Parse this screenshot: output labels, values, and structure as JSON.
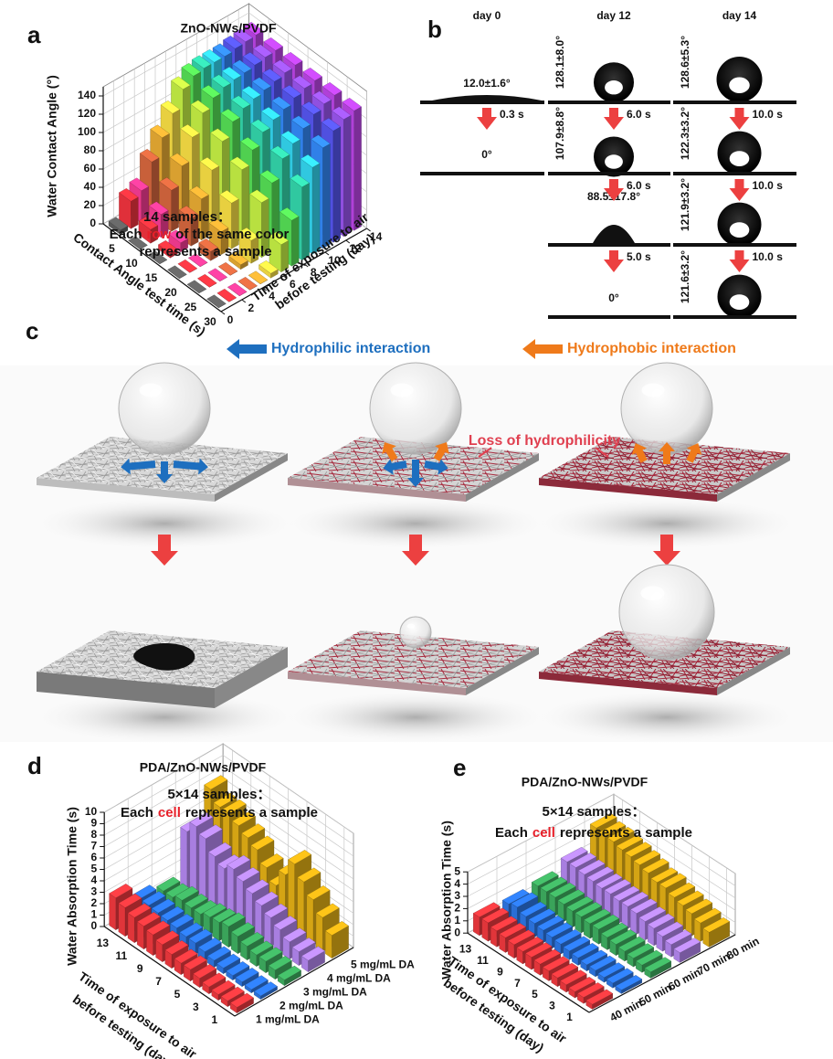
{
  "chart_data": [
    {
      "type": "bar3d",
      "label": "a",
      "title": "ZnO-NWs/PVDF",
      "ylabel": "Water Contact Angle (°)",
      "xlabel": [
        "Contact Angle test time (s)"
      ],
      "zlabel": [
        "Time of exposure to air",
        "before testing (day)"
      ],
      "annotation": {
        "line1": "14 samples：",
        "line2": [
          "Each",
          "row",
          "of the same color"
        ],
        "line3": "represents a sample"
      },
      "x": [
        5,
        10,
        15,
        20,
        25,
        30
      ],
      "xlim": [
        0,
        30
      ],
      "xticks": [
        5,
        10,
        15,
        20,
        25,
        30
      ],
      "ylim": [
        0,
        150
      ],
      "yticks": [
        0,
        20,
        40,
        60,
        80,
        100,
        120,
        140
      ],
      "zlim": [
        0,
        14
      ],
      "zticks": [
        0,
        2,
        4,
        6,
        8,
        10,
        12,
        14
      ],
      "series": [
        {
          "color": "#5a5a5a",
          "values": [
            5,
            0,
            0,
            0,
            0,
            0
          ]
        },
        {
          "color": "#e0303a",
          "values": [
            30,
            15,
            5,
            0,
            0,
            0
          ]
        },
        {
          "color": "#e8388a",
          "values": [
            35,
            25,
            10,
            0,
            0,
            0
          ]
        },
        {
          "color": "#c8603a",
          "values": [
            60,
            45,
            30,
            10,
            0,
            0
          ]
        },
        {
          "color": "#d9a030",
          "values": [
            80,
            65,
            45,
            25,
            5,
            0
          ]
        },
        {
          "color": "#e8d040",
          "values": [
            100,
            90,
            70,
            50,
            25,
            5
          ]
        },
        {
          "color": "#b8e040",
          "values": [
            120,
            110,
            95,
            80,
            60,
            30
          ]
        },
        {
          "color": "#50d050",
          "values": [
            128,
            120,
            110,
            95,
            75,
            50
          ]
        },
        {
          "color": "#30c8a0",
          "values": [
            130,
            125,
            118,
            108,
            95,
            80
          ]
        },
        {
          "color": "#30c8e0",
          "values": [
            130,
            127,
            122,
            115,
            105,
            95
          ]
        },
        {
          "color": "#3080e8",
          "values": [
            130,
            128,
            125,
            120,
            115,
            110
          ]
        },
        {
          "color": "#5050e0",
          "values": [
            132,
            130,
            128,
            126,
            124,
            122
          ]
        },
        {
          "color": "#9050e0",
          "values": [
            133,
            132,
            131,
            130,
            129,
            128
          ]
        },
        {
          "color": "#b040d8",
          "values": [
            134,
            133,
            133,
            132,
            132,
            131
          ]
        }
      ]
    },
    {
      "type": "bar3d",
      "label": "d",
      "title": "PDA/ZnO-NWs/PVDF",
      "ylabel": "Water Absorption Time (s)",
      "xlabel": [
        "Time of exposure to air",
        "before testing (day)"
      ],
      "annotation": {
        "line1": "5×14 samples：",
        "line2": [
          "Each",
          "cell",
          "represents a sample"
        ]
      },
      "x": [
        1,
        2,
        3,
        4,
        5,
        6,
        7,
        8,
        9,
        10,
        11,
        12,
        13,
        14
      ],
      "xlim": [
        0,
        14
      ],
      "xticks": [
        1,
        3,
        5,
        7,
        9,
        11,
        13
      ],
      "ylim": [
        0,
        10
      ],
      "yticks": [
        0,
        1,
        2,
        3,
        4,
        5,
        6,
        7,
        8,
        9,
        10
      ],
      "series": [
        {
          "name": "1 mg/mL DA",
          "color": "#e0353a",
          "values": [
            0.5,
            0.5,
            0.5,
            0.6,
            0.8,
            1,
            1,
            1.2,
            1.5,
            1.8,
            2,
            2.2,
            2.5,
            2.8
          ]
        },
        {
          "name": "2 mg/mL DA",
          "color": "#2a6fd6",
          "values": [
            0.3,
            0.3,
            0.4,
            0.4,
            0.5,
            0.6,
            0.8,
            1,
            1,
            1.2,
            1.3,
            1.4,
            1.5,
            1.5
          ]
        },
        {
          "name": "3 mg/mL DA",
          "color": "#3aa35a",
          "values": [
            0.5,
            0.8,
            1,
            1,
            1.2,
            1.5,
            1.8,
            1.6,
            1.5,
            1.2,
            1.2,
            1.3,
            1,
            1
          ]
        },
        {
          "name": "4 mg/mL DA",
          "color": "#a87ee0",
          "values": [
            1,
            1.2,
            1.5,
            2,
            2.5,
            3,
            3.5,
            4,
            4.5,
            4,
            4.5,
            5.5,
            6,
            5
          ]
        },
        {
          "name": "5 mg/mL DA",
          "color": "#d4a414",
          "values": [
            2,
            3,
            4,
            5,
            6,
            4.5,
            3,
            4,
            5,
            5.5,
            6,
            6.5,
            6.5,
            7.5
          ]
        }
      ]
    },
    {
      "type": "bar3d",
      "label": "e",
      "title": "PDA/ZnO-NWs/PVDF",
      "ylabel": "Water Absorption Time (s)",
      "xlabel": [
        "Time of exposure to air",
        "before testing (day)"
      ],
      "annotation": {
        "line1": "5×14 samples：",
        "line2": [
          "Each",
          "cell",
          "represents a sample"
        ]
      },
      "x": [
        1,
        2,
        3,
        4,
        5,
        6,
        7,
        8,
        9,
        10,
        11,
        12,
        13,
        14
      ],
      "xlim": [
        0,
        14
      ],
      "xticks": [
        1,
        3,
        5,
        7,
        9,
        11,
        13
      ],
      "ylim": [
        0,
        5
      ],
      "yticks": [
        0,
        1,
        2,
        3,
        4,
        5
      ],
      "series": [
        {
          "name": "40 min",
          "color": "#e0353a",
          "values": [
            0.4,
            0.5,
            0.5,
            0.6,
            0.7,
            0.8,
            0.9,
            1,
            1,
            1.1,
            1.2,
            1.3,
            1.5,
            1.5
          ]
        },
        {
          "name": "50 min",
          "color": "#2a6fd6",
          "values": [
            0.3,
            0.4,
            0.4,
            0.5,
            0.5,
            0.6,
            0.7,
            0.8,
            0.9,
            1,
            1.1,
            1.2,
            1.5,
            1.3
          ]
        },
        {
          "name": "60 min",
          "color": "#3aa35a",
          "values": [
            0.5,
            0.6,
            0.7,
            0.8,
            0.9,
            1,
            1.2,
            1.2,
            1.3,
            1.3,
            1.4,
            1.5,
            1.5,
            1.5
          ]
        },
        {
          "name": "70 min",
          "color": "#a87ee0",
          "values": [
            0.8,
            1,
            1.2,
            1.4,
            1.5,
            1.7,
            1.8,
            1.8,
            1.9,
            1.9,
            2,
            2.1,
            2.2,
            2.2
          ]
        },
        {
          "name": "80 min",
          "color": "#d4a414",
          "values": [
            1.2,
            1.5,
            1.8,
            2,
            2.2,
            2.5,
            2.5,
            2.8,
            3,
            3.2,
            3.3,
            3.5,
            3.5,
            3.7
          ]
        }
      ]
    }
  ],
  "figure": {
    "panel_b": {
      "label": "b",
      "columns": [
        {
          "day": "day 0",
          "angles": [
            "12.0±1.6°",
            "0°"
          ],
          "times": [
            "0.3 s"
          ]
        },
        {
          "day": "day 12",
          "angles": [
            "128.1±8.0°",
            "107.9±8.8°",
            "88.5±17.8°",
            "0°"
          ],
          "times": [
            "6.0 s",
            "6.0 s",
            "5.0 s"
          ]
        },
        {
          "day": "day 14",
          "angles": [
            "128.6±5.3°",
            "122.3±3.2°",
            "121.9±3.2°",
            "121.6±3.2°"
          ],
          "times": [
            "10.0 s",
            "10.0 s",
            "10.0 s"
          ]
        }
      ]
    },
    "panel_c": {
      "label": "c",
      "hydrophilic": "Hydrophilic interaction",
      "hydrophobic": "Hydrophobic interaction",
      "note": "Loss of hydrophilicity"
    }
  }
}
